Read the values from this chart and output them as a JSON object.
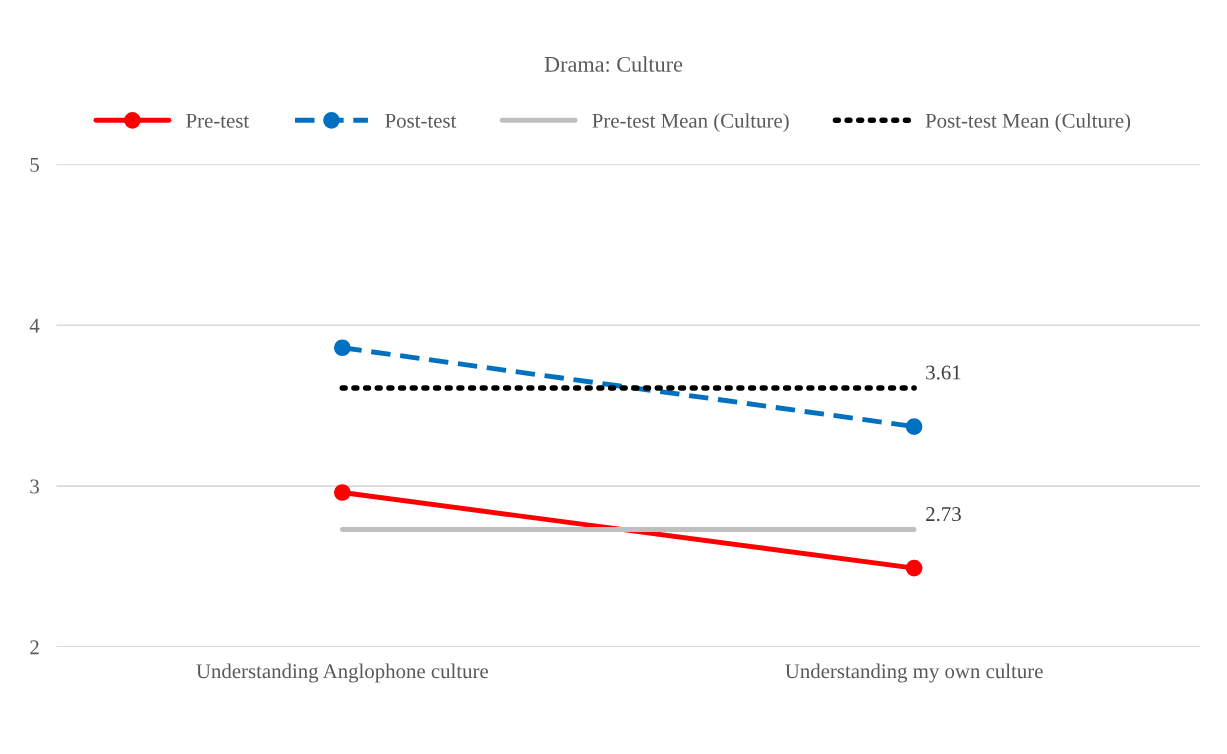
{
  "chart_data": {
    "type": "line",
    "title": "Drama: Culture",
    "categories": [
      "Understanding Anglophone culture",
      "Understanding my own culture"
    ],
    "series": [
      {
        "name": "Pre-test",
        "color": "#ff0000",
        "values": [
          2.96,
          2.49
        ],
        "marker": "circle",
        "line_style": "solid"
      },
      {
        "name": "Post-test",
        "color": "#0070c0",
        "values": [
          3.86,
          3.37
        ],
        "marker": "circle",
        "line_style": "dashed"
      },
      {
        "name": "Pre-test Mean (Culture)",
        "color": "#bfbfbf",
        "values": [
          2.73,
          2.73
        ],
        "marker": "none",
        "line_style": "solid",
        "value_labels": [
          null,
          "2.73"
        ]
      },
      {
        "name": "Post-test Mean (Culture)",
        "color": "#000000",
        "values": [
          3.61,
          3.61
        ],
        "marker": "none",
        "line_style": "dotted",
        "value_labels": [
          null,
          "3.61"
        ]
      }
    ],
    "ylim": [
      2,
      5
    ],
    "yticks": [
      2,
      3,
      4,
      5
    ],
    "grid": "y",
    "legend": "top"
  }
}
